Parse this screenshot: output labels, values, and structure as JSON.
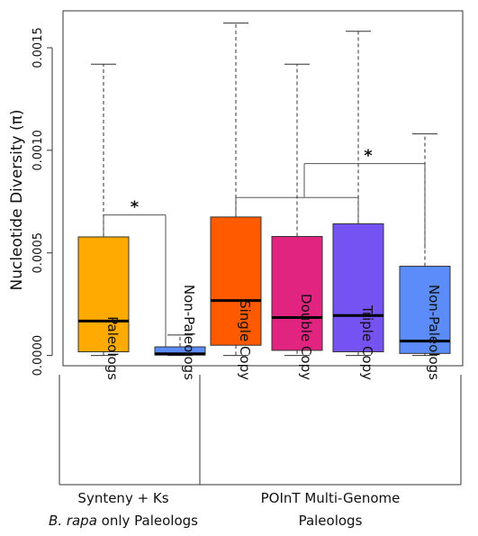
{
  "chart_data": {
    "type": "boxplot",
    "ylabel": "Nucleotide Diversity (π)",
    "ylim": [
      -5e-05,
      0.00168
    ],
    "yticks": [
      "0.0000",
      "0.0005",
      "0.0010",
      "0.0015"
    ],
    "ytick_values": [
      0.0,
      0.0005,
      0.001,
      0.0015
    ],
    "categories": [
      "Paleologs",
      "Non-Paleologs",
      "Single Copy",
      "Double Copy",
      "Triple Copy",
      "Non-Paleologs"
    ],
    "boxes": [
      {
        "category": "Paleologs",
        "min": 0.0,
        "q1": 1.8e-05,
        "median": 0.000168,
        "q3": 0.000578,
        "max": 0.00142,
        "color": "#FFAA00"
      },
      {
        "category": "Non-Paleologs",
        "min": 0.0,
        "q1": 2e-06,
        "median": 8e-06,
        "q3": 4.2e-05,
        "max": 0.0001,
        "color": "#5C8CFA"
      },
      {
        "category": "Single Copy",
        "min": 0.0,
        "q1": 5e-05,
        "median": 0.000268,
        "q3": 0.000675,
        "max": 0.00162,
        "color": "#FF5A00"
      },
      {
        "category": "Double Copy",
        "min": 0.0,
        "q1": 2.5e-05,
        "median": 0.000185,
        "q3": 0.00058,
        "max": 0.00142,
        "color": "#E0247F"
      },
      {
        "category": "Triple Copy",
        "min": 0.0,
        "q1": 1.8e-05,
        "median": 0.000195,
        "q3": 0.000642,
        "max": 0.00158,
        "color": "#7552F2"
      },
      {
        "category": "Non-Paleologs",
        "min": 0.0,
        "q1": 1e-05,
        "median": 7e-05,
        "q3": 0.000435,
        "max": 0.00108,
        "color": "#5C8CFA"
      }
    ],
    "significance": [
      {
        "from": 0,
        "to": 1,
        "y": 0.000685,
        "label": "*"
      },
      {
        "from": [
          2,
          4
        ],
        "to": 5,
        "y": 0.000935,
        "label": "*"
      }
    ],
    "groups": [
      {
        "from": 0,
        "to": 1,
        "label_lines": [
          "Synteny + Ks",
          "B. rapa only Paleologs"
        ]
      },
      {
        "from": 2,
        "to": 5,
        "label_lines": [
          "POInT Multi-Genome",
          "Paleologs"
        ]
      }
    ]
  }
}
